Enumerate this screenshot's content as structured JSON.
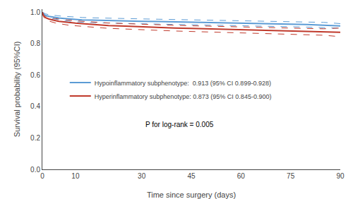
{
  "chart_data": {
    "type": "line",
    "xlabel": "Time since surgery (days)",
    "ylabel": "Survival probability (95%CI)",
    "xlim": [
      0,
      90
    ],
    "ylim": [
      0,
      1.02
    ],
    "xticks": [
      0,
      10,
      30,
      45,
      60,
      75,
      90
    ],
    "yticks": [
      {
        "value": 0,
        "label": "0.0"
      },
      0.2,
      0.4,
      0.6,
      0.8,
      {
        "value": 1.0,
        "label": "1.0"
      }
    ],
    "grid": false,
    "legend": "center",
    "annotations": [
      "P for log-rank = 0.005"
    ],
    "series": [
      {
        "name": "Hypoinflammatory subphenotype:  0.913 (95% CI 0.899-0.928)",
        "color": "#5B9BD5",
        "line_style": "solid",
        "x": [
          0,
          0.3,
          0.7,
          1,
          2,
          3,
          4,
          5,
          6,
          7,
          8,
          9,
          10,
          12,
          15,
          18,
          20,
          25,
          30,
          35,
          40,
          45,
          50,
          55,
          60,
          65,
          70,
          75,
          80,
          85,
          90
        ],
        "values": [
          1.0,
          0.99,
          0.984,
          0.98,
          0.974,
          0.97,
          0.967,
          0.964,
          0.962,
          0.96,
          0.958,
          0.956,
          0.954,
          0.952,
          0.95,
          0.948,
          0.947,
          0.945,
          0.943,
          0.941,
          0.939,
          0.938,
          0.936,
          0.934,
          0.932,
          0.93,
          0.928,
          0.926,
          0.922,
          0.918,
          0.913
        ],
        "upper": [
          1.0,
          0.996,
          0.993,
          0.99,
          0.984,
          0.981,
          0.979,
          0.977,
          0.975,
          0.974,
          0.972,
          0.971,
          0.97,
          0.967,
          0.965,
          0.963,
          0.962,
          0.96,
          0.958,
          0.956,
          0.954,
          0.953,
          0.951,
          0.949,
          0.948,
          0.946,
          0.944,
          0.942,
          0.939,
          0.936,
          0.928
        ],
        "lower": [
          1.0,
          0.983,
          0.974,
          0.969,
          0.963,
          0.959,
          0.955,
          0.951,
          0.948,
          0.946,
          0.944,
          0.942,
          0.94,
          0.937,
          0.934,
          0.932,
          0.931,
          0.928,
          0.927,
          0.925,
          0.923,
          0.922,
          0.92,
          0.918,
          0.917,
          0.914,
          0.912,
          0.91,
          0.906,
          0.902,
          0.899
        ]
      },
      {
        "name": "Hyperinflammatory subphenotype: 0.873 (95% CI 0.845-0.900)",
        "color": "#C0392B",
        "line_style": "solid",
        "x": [
          0,
          0.3,
          0.7,
          1,
          2,
          3,
          4,
          5,
          6,
          7,
          8,
          9,
          10,
          12,
          15,
          18,
          20,
          25,
          30,
          35,
          40,
          45,
          50,
          55,
          60,
          65,
          70,
          75,
          80,
          85,
          90
        ],
        "values": [
          1.0,
          0.982,
          0.972,
          0.965,
          0.957,
          0.951,
          0.947,
          0.943,
          0.94,
          0.937,
          0.935,
          0.933,
          0.931,
          0.928,
          0.923,
          0.919,
          0.916,
          0.912,
          0.907,
          0.903,
          0.9,
          0.897,
          0.894,
          0.891,
          0.889,
          0.886,
          0.884,
          0.881,
          0.878,
          0.876,
          0.873
        ],
        "upper": [
          1.0,
          0.99,
          0.982,
          0.976,
          0.969,
          0.964,
          0.96,
          0.957,
          0.954,
          0.952,
          0.95,
          0.948,
          0.946,
          0.943,
          0.938,
          0.935,
          0.932,
          0.928,
          0.924,
          0.92,
          0.917,
          0.914,
          0.912,
          0.909,
          0.907,
          0.904,
          0.902,
          0.899,
          0.897,
          0.895,
          0.9
        ],
        "lower": [
          1.0,
          0.973,
          0.961,
          0.953,
          0.944,
          0.937,
          0.932,
          0.928,
          0.924,
          0.921,
          0.918,
          0.916,
          0.914,
          0.91,
          0.905,
          0.901,
          0.898,
          0.893,
          0.888,
          0.884,
          0.881,
          0.878,
          0.875,
          0.872,
          0.869,
          0.866,
          0.864,
          0.861,
          0.857,
          0.854,
          0.845
        ]
      }
    ]
  }
}
